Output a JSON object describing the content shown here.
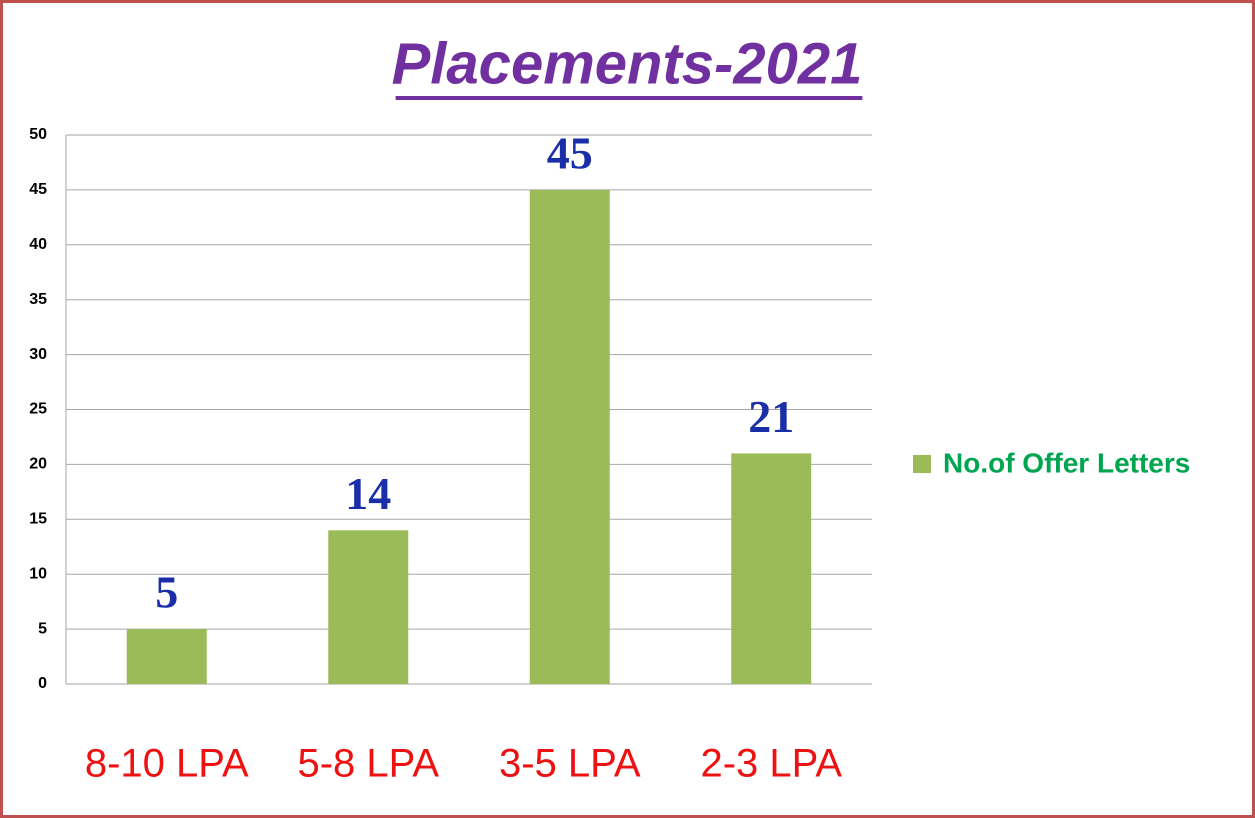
{
  "chart_data": {
    "type": "bar",
    "title": "Placements-2021",
    "categories": [
      "8-10 LPA",
      "5-8 LPA",
      "3-5 LPA",
      "2-3 LPA"
    ],
    "series": [
      {
        "name": "No.of Offer Letters",
        "color": "#9bbb59",
        "values": [
          5,
          14,
          45,
          21
        ]
      }
    ],
    "ylim": [
      0,
      50
    ],
    "yticks": [
      0,
      5,
      10,
      15,
      20,
      25,
      30,
      35,
      40,
      45,
      50
    ],
    "grid": true,
    "legend": "right",
    "data_labels": true
  }
}
